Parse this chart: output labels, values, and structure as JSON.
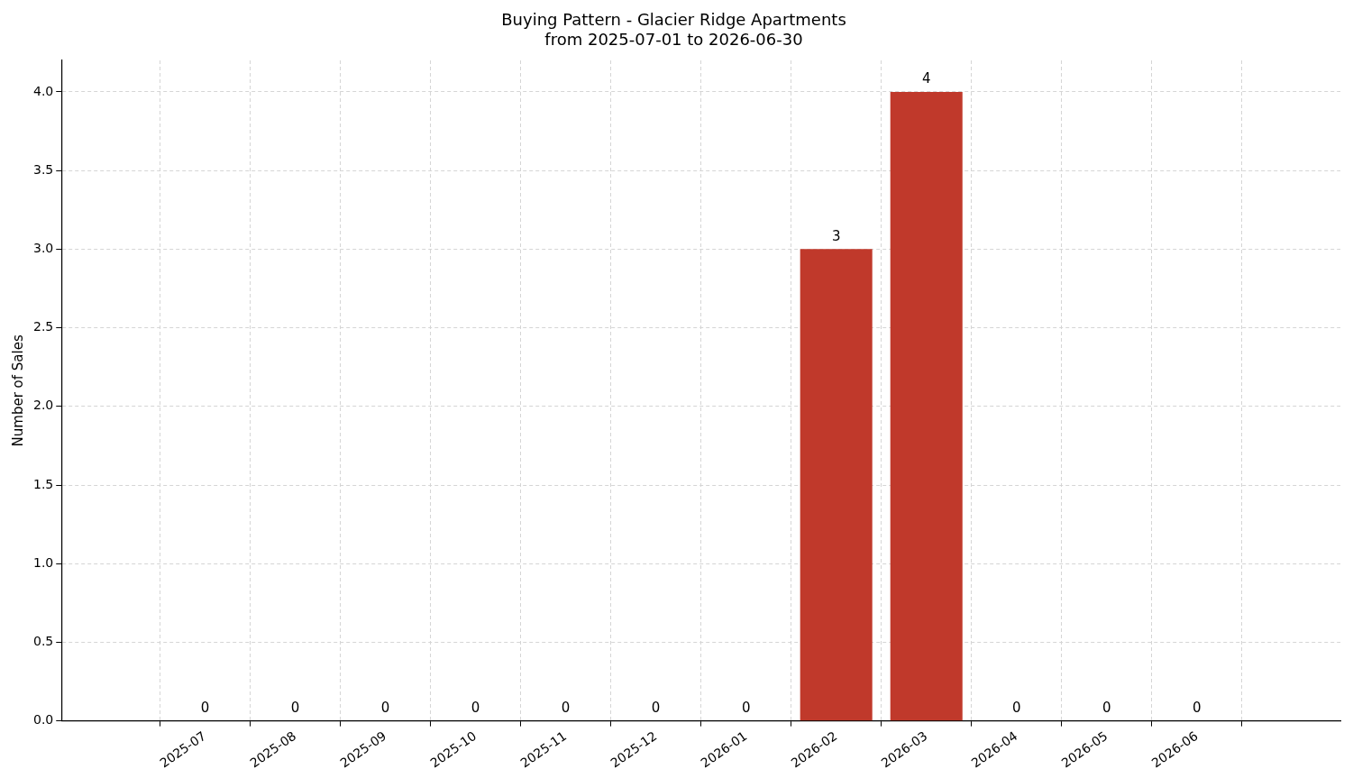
{
  "chart_data": {
    "type": "bar",
    "title": "Buying Pattern - Glacier Ridge Apartments\nfrom 2025-07-01 to 2026-06-30",
    "ylabel": "Number of Sales",
    "categories": [
      "2025-07",
      "2025-08",
      "2025-09",
      "2025-10",
      "2025-11",
      "2025-12",
      "2026-01",
      "2026-02",
      "2026-03",
      "2026-04",
      "2026-05",
      "2026-06"
    ],
    "values": [
      0,
      0,
      0,
      0,
      0,
      0,
      0,
      3,
      4,
      0,
      0,
      0
    ],
    "color": "#c0392b",
    "ylim": [
      0,
      4.2
    ],
    "yticks": [
      {
        "value": 0,
        "label": "0.0"
      },
      0.5,
      {
        "value": 1,
        "label": "1.0"
      },
      1.5,
      {
        "value": 2,
        "label": "2.0"
      },
      2.5,
      {
        "value": 3,
        "label": "3.0"
      },
      3.5,
      {
        "value": 4,
        "label": "4.0"
      }
    ],
    "grid": true,
    "data_labels": true
  }
}
